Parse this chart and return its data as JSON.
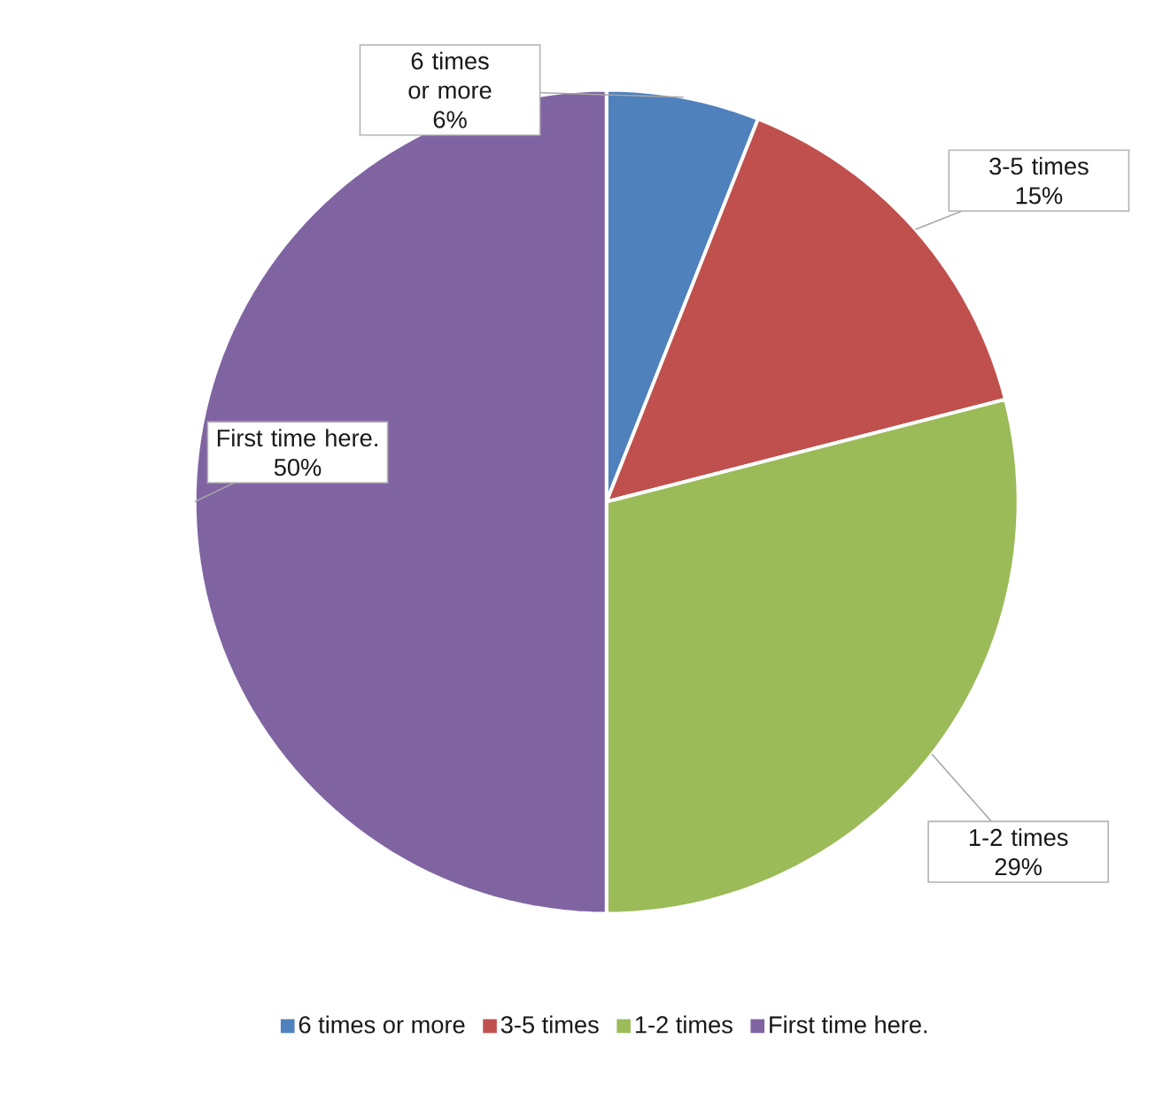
{
  "chart_data": {
    "type": "pie",
    "categories": [
      "6 times or more",
      "3-5 times",
      "1-2 times",
      "First time here."
    ],
    "values": [
      6,
      15,
      29,
      50
    ],
    "value_labels": [
      "6%",
      "15%",
      "29%",
      "50%"
    ],
    "colors": [
      "#4f81bd",
      "#c0504d",
      "#9bbb59",
      "#8064a2"
    ],
    "legend": "bottom"
  }
}
